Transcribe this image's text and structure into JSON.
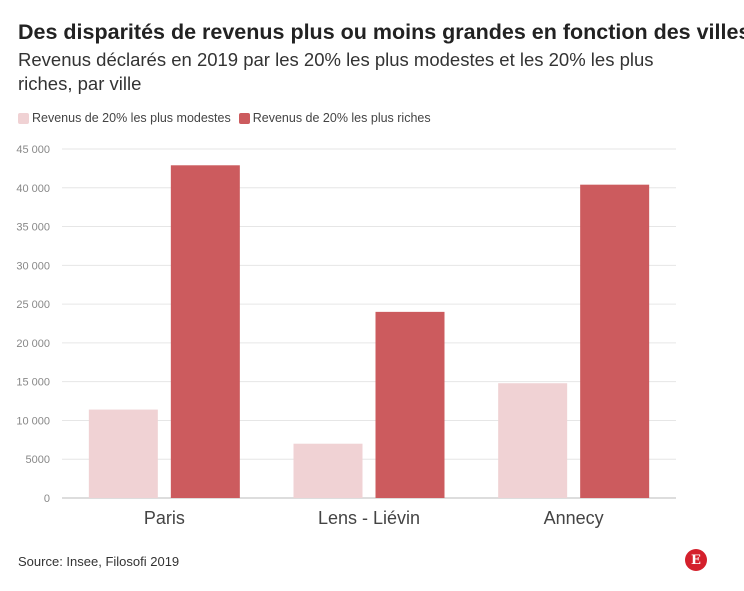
{
  "header": {
    "title": "Des disparités de revenus plus ou moins grandes en fonction des villes",
    "subtitle": "Revenus déclarés en 2019 par les 20% les plus modestes et les 20% les plus riches, par ville"
  },
  "footer": {
    "source": "Source: Insee, Filosofi 2019",
    "logo": "E"
  },
  "colors": {
    "modestes": "#f0d2d4",
    "riches": "#cc5b5e",
    "grid": "#e6e6e6",
    "tick_text": "#888888",
    "category_text": "#444444"
  },
  "chart_data": {
    "type": "bar",
    "title": "Des disparités de revenus plus ou moins grandes en fonction des villes",
    "subtitle": "Revenus déclarés en 2019 par les 20% les plus modestes et les 20% les plus riches, par ville",
    "categories": [
      "Paris",
      "Lens - Liévin",
      "Annecy"
    ],
    "series": [
      {
        "name": "Revenus de 20% les plus modestes",
        "values": [
          11400,
          7000,
          14800
        ]
      },
      {
        "name": "Revenus de 20% les plus riches",
        "values": [
          42900,
          24000,
          40400
        ]
      }
    ],
    "ylim": [
      0,
      45000
    ],
    "yticks": [
      0,
      5000,
      10000,
      15000,
      20000,
      25000,
      30000,
      35000,
      40000,
      45000
    ],
    "ytick_labels": [
      "0",
      "5000",
      "10 000",
      "15 000",
      "20 000",
      "25 000",
      "30 000",
      "35 000",
      "40 000",
      "45 000"
    ],
    "grid": true,
    "legend_position": "top-left",
    "xlabel": "",
    "ylabel": ""
  }
}
